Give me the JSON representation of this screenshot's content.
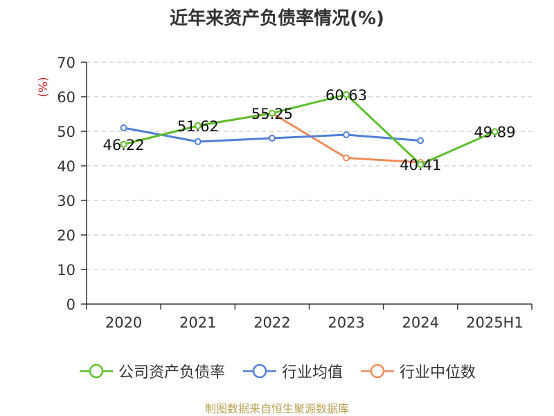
{
  "chart_data": {
    "type": "line",
    "title": "近年来资产负债率情况(%)",
    "ylabel": "(%)",
    "xlabel": "",
    "categories": [
      "2020",
      "2021",
      "2022",
      "2023",
      "2024",
      "2025H1"
    ],
    "ylim": [
      0,
      70
    ],
    "yticks": [
      0,
      10,
      20,
      30,
      40,
      50,
      60,
      70
    ],
    "grid": "horizontal dashed",
    "legend_position": "bottom",
    "series": [
      {
        "name": "公司资产负债率",
        "color": "#5cbf2a",
        "values": [
          46.22,
          51.62,
          55.25,
          60.63,
          40.41,
          49.89
        ],
        "data_labels": [
          "46.22",
          "51.62",
          "55.25",
          "60.63",
          "40.41",
          "49.89"
        ]
      },
      {
        "name": "行业均值",
        "color": "#4f7fd9",
        "values": [
          51.0,
          47.0,
          48.0,
          49.0,
          47.3,
          null
        ]
      },
      {
        "name": "行业中位数",
        "color": "#f08c5a",
        "values": [
          46.22,
          51.62,
          55.25,
          42.3,
          41.0,
          null
        ]
      }
    ]
  },
  "source_note": "制图数据来自恒生聚源数据库"
}
